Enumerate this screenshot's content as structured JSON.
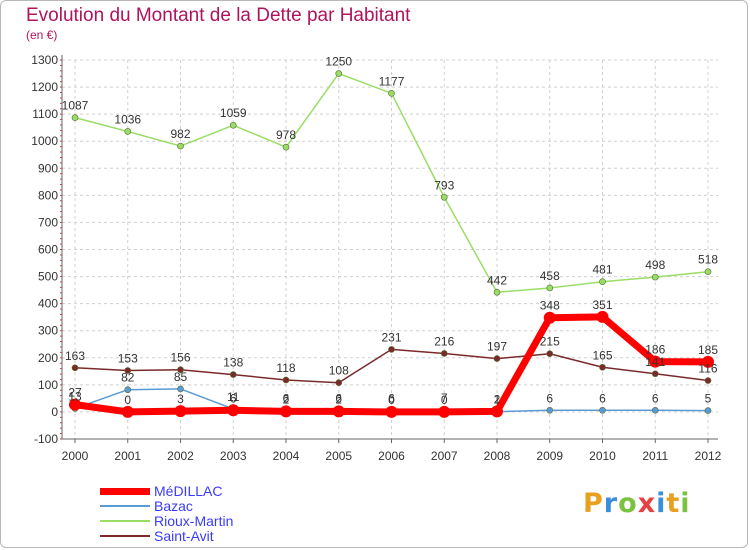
{
  "title": "Evolution du Montant de la Dette par Habitant",
  "subtitle": "(en €)",
  "logo": {
    "text": "Proxiti",
    "letters": [
      "P",
      "r",
      "o",
      "x",
      "i",
      "t",
      "i"
    ],
    "letter_colors": [
      "#e8a020",
      "#3a8fd8",
      "#7cc242",
      "#e84040",
      "#3a8fd8",
      "#e8a020",
      "#7cc242"
    ]
  },
  "chart_data": {
    "type": "line",
    "title": "Evolution du Montant de la Dette par Habitant",
    "subtitle": "(en €)",
    "x": [
      "2000",
      "2001",
      "2002",
      "2003",
      "2004",
      "2005",
      "2006",
      "2007",
      "2008",
      "2009",
      "2010",
      "2011",
      "2012"
    ],
    "ylim": [
      -100,
      1300
    ],
    "yticks": [
      "-100",
      "0",
      "100",
      "200",
      "300",
      "400",
      "500",
      "600",
      "700",
      "800",
      "900",
      "1000",
      "1100",
      "1200",
      "1300"
    ],
    "grid": true,
    "legend_position": "bottom-left",
    "series": [
      {
        "name": "MéDILLAC",
        "color": "#ff0000",
        "values": [
          27,
          0,
          3,
          6,
          2,
          2,
          0,
          0,
          2,
          348,
          351,
          186,
          185
        ],
        "labels": [
          "27",
          "0",
          "3",
          "6",
          "2",
          "2",
          "0",
          "0",
          "2",
          "348",
          "351",
          "186",
          "185"
        ]
      },
      {
        "name": "Bazac",
        "color": "#5b9bd5",
        "values": [
          13,
          82,
          85,
          11,
          6,
          6,
          6,
          7,
          1,
          6,
          6,
          6,
          5
        ],
        "labels": [
          "13",
          "82",
          "85",
          "11",
          "6",
          "6",
          "6",
          "7",
          "1",
          "6",
          "6",
          "6",
          "5"
        ]
      },
      {
        "name": "Rioux-Martin",
        "color": "#99dd66",
        "values": [
          1087,
          1036,
          982,
          1059,
          978,
          1250,
          1177,
          793,
          442,
          458,
          481,
          498,
          518
        ],
        "labels": [
          "1087",
          "1036",
          "982",
          "1059",
          "978",
          "1250",
          "1177",
          "793",
          "442",
          "458",
          "481",
          "498",
          "518"
        ]
      },
      {
        "name": "Saint-Avit",
        "color": "#7a2a2a",
        "values": [
          163,
          153,
          156,
          138,
          118,
          108,
          231,
          216,
          197,
          215,
          165,
          141,
          116
        ],
        "labels": [
          "163",
          "153",
          "156",
          "138",
          "118",
          "108",
          "231",
          "216",
          "197",
          "215",
          "165",
          "141",
          "116"
        ]
      }
    ]
  }
}
